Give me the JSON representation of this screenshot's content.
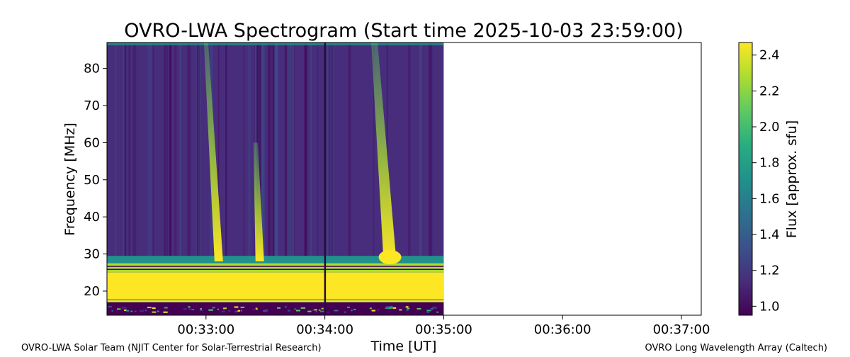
{
  "title": "OVRO-LWA Spectrogram (Start time 2025-10-03 23:59:00)",
  "credits": {
    "left": "OVRO-LWA Solar Team (NJIT Center for Solar-Terrestrial Research)",
    "right": "OVRO Long Wavelength Array (Caltech)"
  },
  "chart_data": {
    "type": "heatmap",
    "title": "OVRO-LWA Spectrogram (Start time 2025-10-03 23:59:00)",
    "xlabel": "Time [UT]",
    "ylabel": "Frequency [MHz]",
    "xlim": [
      "00:32:10",
      "00:37:10"
    ],
    "ylim": [
      13.5,
      87
    ],
    "x_ticks": [
      {
        "value": "00:33:00",
        "label": "00:33:00"
      },
      {
        "value": "00:34:00",
        "label": "00:34:00"
      },
      {
        "value": "00:35:00",
        "label": "00:35:00"
      },
      {
        "value": "00:36:00",
        "label": "00:36:00"
      },
      {
        "value": "00:37:00",
        "label": "00:37:00"
      }
    ],
    "y_ticks": [
      20,
      30,
      40,
      50,
      60,
      70,
      80
    ],
    "data_time_range": [
      "00:32:10",
      "00:35:00"
    ],
    "colorbar": {
      "label": "Flux [approx. sfu]",
      "range": [
        0.95,
        2.47
      ],
      "ticks": [
        1.0,
        1.2,
        1.4,
        1.6,
        1.8,
        2.0,
        2.2,
        2.4
      ],
      "colormap": "viridis",
      "colors": [
        "#440154",
        "#472d7b",
        "#3b528b",
        "#2c728e",
        "#21918c",
        "#28ae80",
        "#5ec962",
        "#addc30",
        "#fde725"
      ]
    },
    "features": {
      "saturated_band_mhz": [
        17,
        25
      ],
      "low_band_mhz": [
        13.5,
        17
      ],
      "bursts": [
        {
          "time": "00:33:00",
          "freq_range_mhz": [
            28,
            87
          ]
        },
        {
          "time": "00:33:25",
          "freq_range_mhz": [
            28,
            60
          ]
        },
        {
          "time": "00:34:25",
          "freq_range_mhz": [
            28,
            87
          ]
        }
      ],
      "data_gap_time": "00:34:00"
    }
  }
}
